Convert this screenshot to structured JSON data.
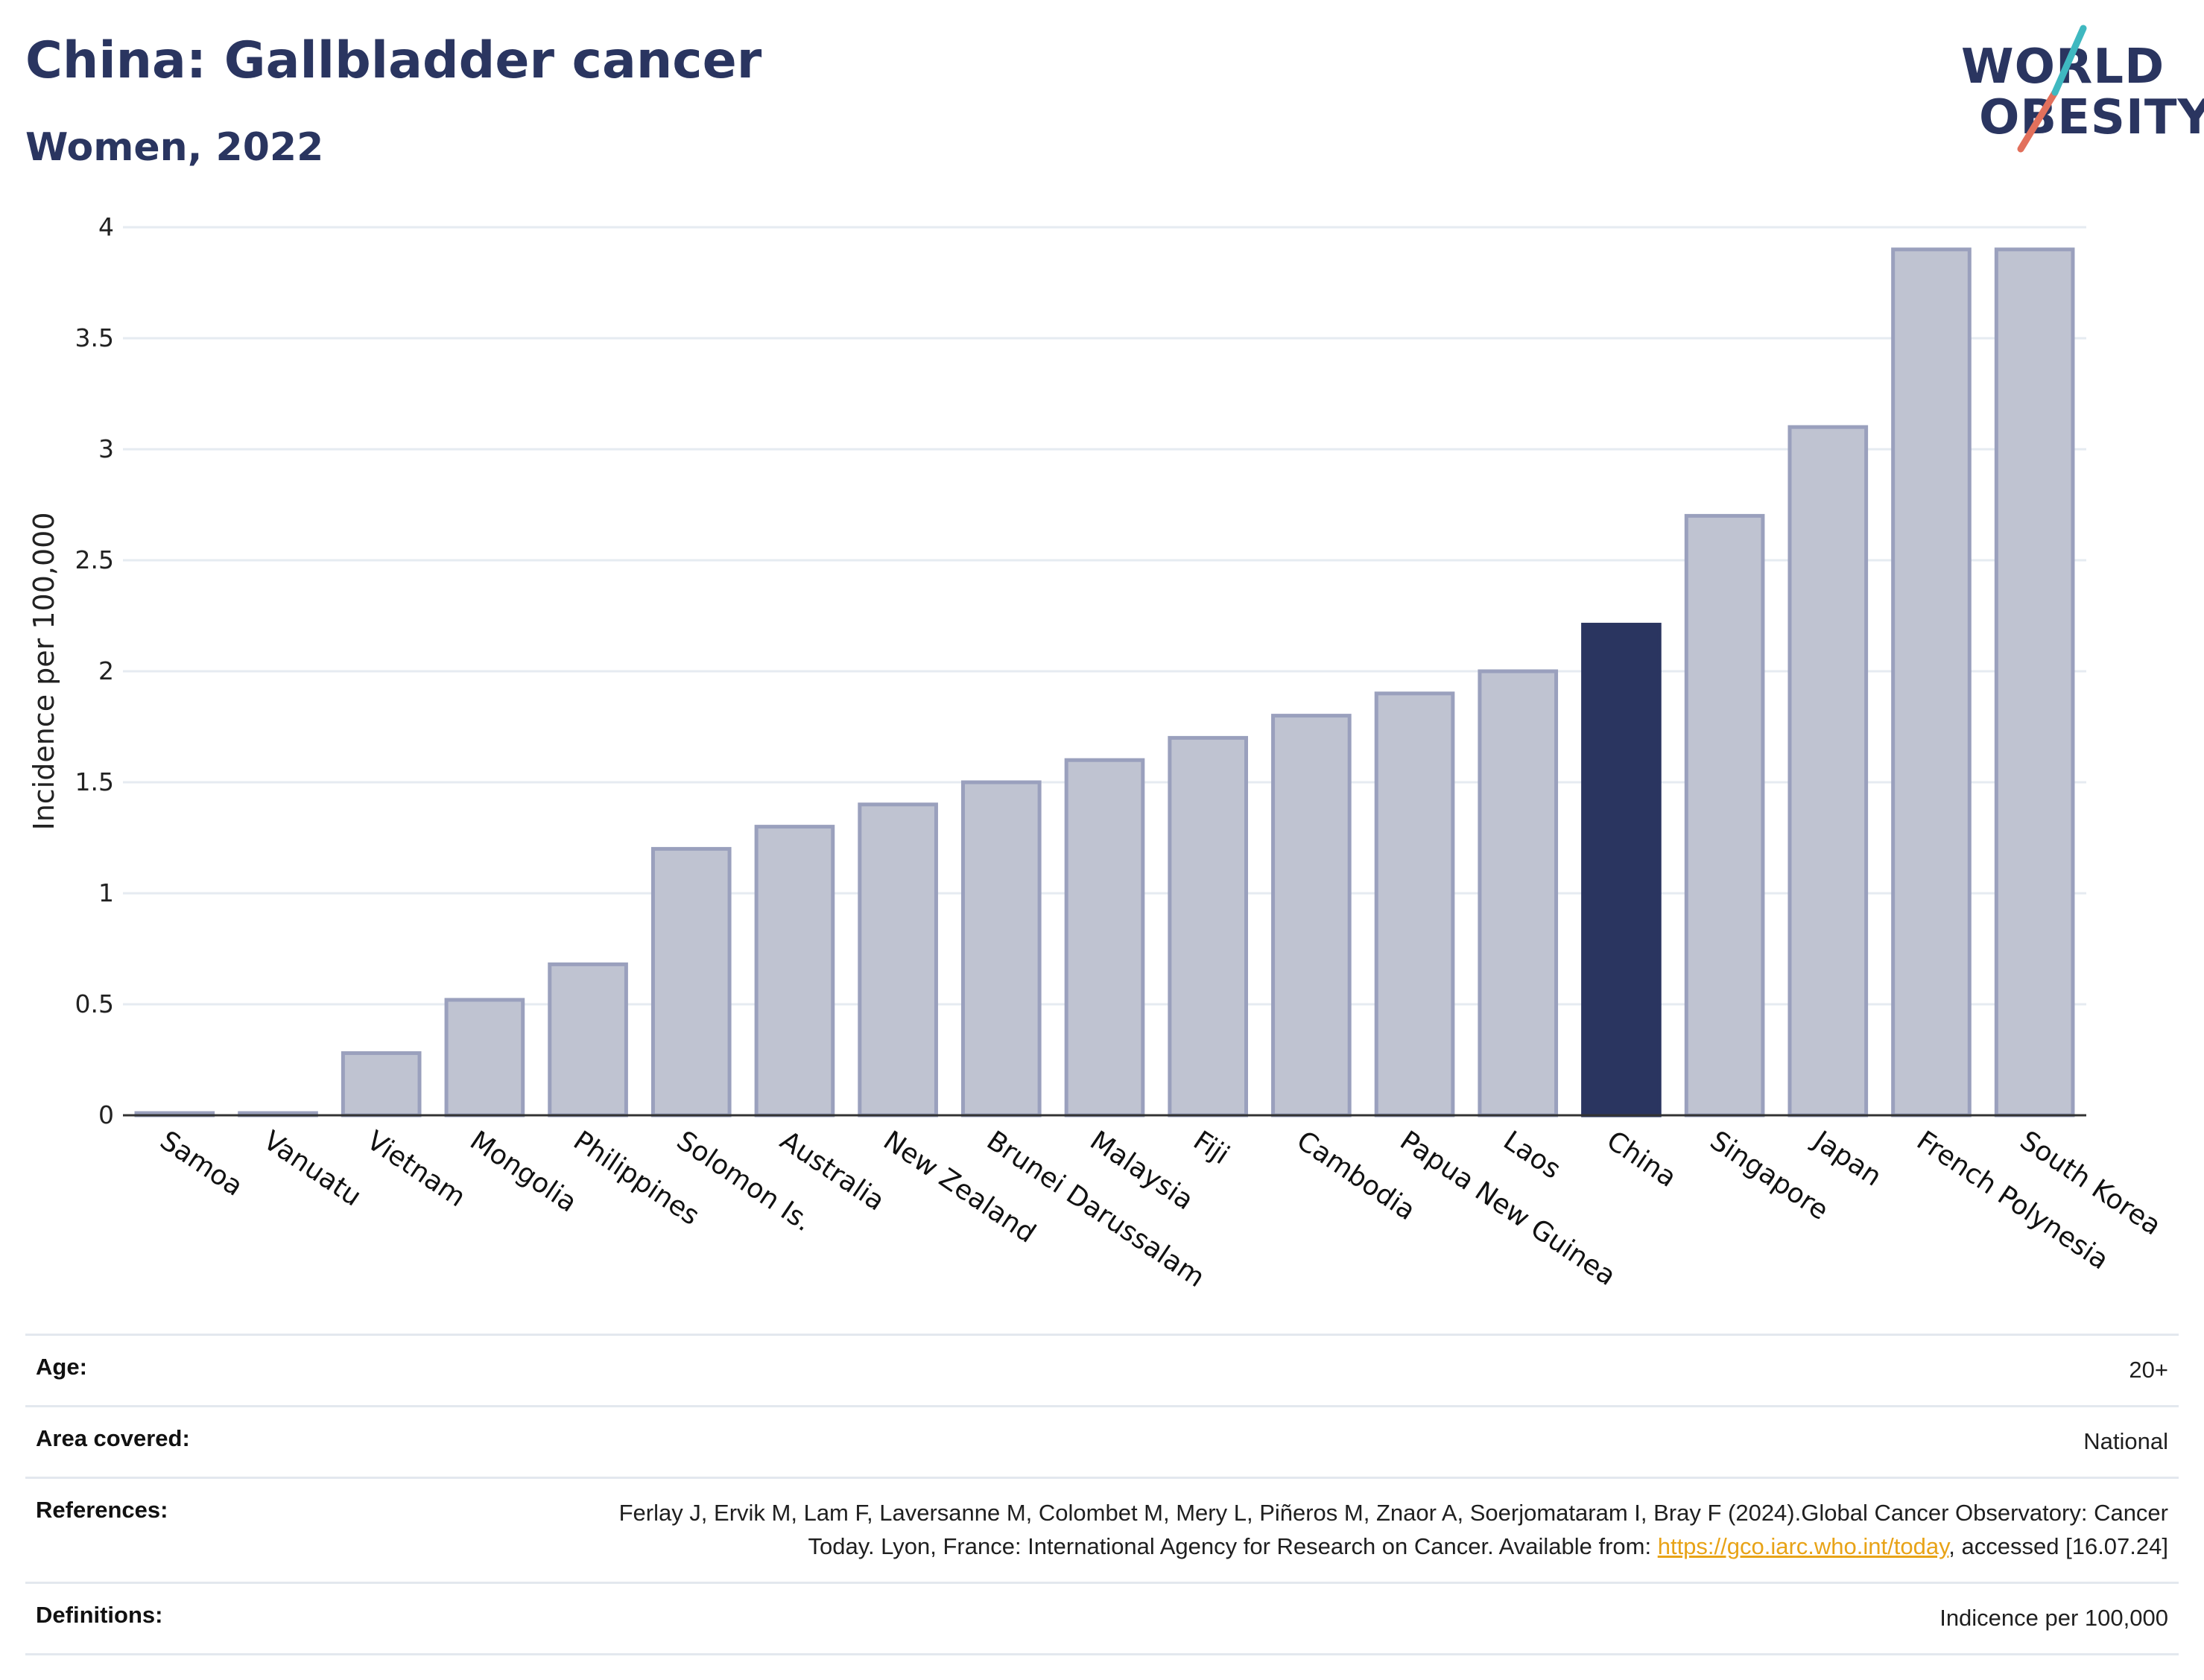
{
  "title": "China: Gallbladder cancer",
  "subtitle": "Women, 2022",
  "logo": {
    "line1": "WORLD",
    "line2": "OBESITY"
  },
  "chart_data": {
    "type": "bar",
    "ylabel": "Incidence per 100,000",
    "ylim": [
      0,
      4
    ],
    "yticks": [
      0,
      0.5,
      1,
      1.5,
      2,
      2.5,
      3,
      3.5,
      4
    ],
    "categories": [
      "Samoa",
      "Vanuatu",
      "Vietnam",
      "Mongolia",
      "Philippines",
      "Solomon Is.",
      "Australia",
      "New Zealand",
      "Brunei Darussalam",
      "Malaysia",
      "Fiji",
      "Cambodia",
      "Papua New Guinea",
      "Laos",
      "China",
      "Singapore",
      "Japan",
      "French Polynesia",
      "South Korea"
    ],
    "values": [
      0.01,
      0.01,
      0.28,
      0.52,
      0.68,
      1.2,
      1.3,
      1.4,
      1.5,
      1.6,
      1.7,
      1.8,
      1.9,
      2.0,
      2.21,
      2.7,
      3.1,
      3.9,
      3.9
    ],
    "highlight": "China",
    "colors": {
      "bar": "#bfc3d1",
      "bar_border": "#9aa0bd",
      "highlight": "#2a3560",
      "grid": "#e6ebf1",
      "axis": "#333333"
    },
    "grid": true,
    "legend": "none"
  },
  "meta": {
    "age_label": "Age:",
    "age_value": "20+",
    "area_label": "Area covered:",
    "area_value": "National",
    "ref_label": "References:",
    "ref_text_1": "Ferlay J, Ervik M, Lam F, Laversanne M, Colombet M, Mery L, Piñeros M, Znaor A, Soerjomataram I, Bray F (2024).Global Cancer Observatory: Cancer Today. Lyon, France: International Agency for Research on Cancer. Available from: ",
    "ref_link": "https://gco.iarc.who.int/today",
    "ref_text_2": ", accessed [16.07.24]",
    "def_label": "Definitions:",
    "def_value": "Indicence per 100,000"
  }
}
